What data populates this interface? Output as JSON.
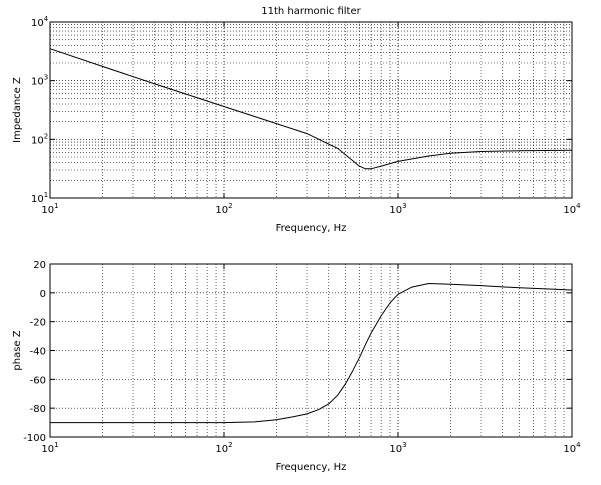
{
  "chart_data": [
    {
      "type": "line",
      "title": "11th harmonic filter",
      "xlabel": "Frequency, Hz",
      "ylabel": "Impedance Z",
      "xscale": "log",
      "yscale": "log",
      "xlim": [
        10,
        10000
      ],
      "ylim": [
        10,
        10000
      ],
      "grid": true,
      "x_ticks": [
        {
          "base": "10",
          "exp": "1"
        },
        {
          "base": "10",
          "exp": "2"
        },
        {
          "base": "10",
          "exp": "3"
        },
        {
          "base": "10",
          "exp": "4"
        }
      ],
      "y_ticks": [
        {
          "base": "10",
          "exp": "1"
        },
        {
          "base": "10",
          "exp": "2"
        },
        {
          "base": "10",
          "exp": "3"
        },
        {
          "base": "10",
          "exp": "4"
        }
      ],
      "series": [
        {
          "x": [
            10,
            20,
            40,
            80,
            150,
            300,
            450,
            600,
            650,
            700,
            800,
            1000,
            1500,
            2000,
            3000,
            5000,
            10000
          ],
          "y": [
            3500,
            1750,
            880,
            450,
            245,
            125,
            70,
            35,
            31.5,
            31.5,
            35,
            42,
            52,
            58,
            62,
            64,
            65
          ]
        }
      ]
    },
    {
      "type": "line",
      "title": "",
      "xlabel": "Frequency, Hz",
      "ylabel": "phase Z",
      "xscale": "log",
      "yscale": "linear",
      "xlim": [
        10,
        10000
      ],
      "ylim": [
        -100,
        20
      ],
      "grid": true,
      "x_ticks": [
        {
          "base": "10",
          "exp": "1"
        },
        {
          "base": "10",
          "exp": "2"
        },
        {
          "base": "10",
          "exp": "3"
        },
        {
          "base": "10",
          "exp": "4"
        }
      ],
      "y_ticks": [
        "20",
        "0",
        "-20",
        "-40",
        "-60",
        "-80",
        "-100"
      ],
      "series": [
        {
          "x": [
            10,
            50,
            100,
            150,
            200,
            250,
            300,
            350,
            400,
            450,
            500,
            550,
            600,
            650,
            700,
            800,
            900,
            1000,
            1200,
            1500,
            2000,
            3000,
            5000,
            10000
          ],
          "y": [
            -90,
            -90,
            -90,
            -89.5,
            -88,
            -86,
            -84,
            -81,
            -77,
            -71,
            -63,
            -54,
            -45,
            -36,
            -28,
            -16,
            -7,
            -1,
            4,
            6.5,
            6,
            5,
            3.5,
            2
          ]
        }
      ]
    }
  ]
}
